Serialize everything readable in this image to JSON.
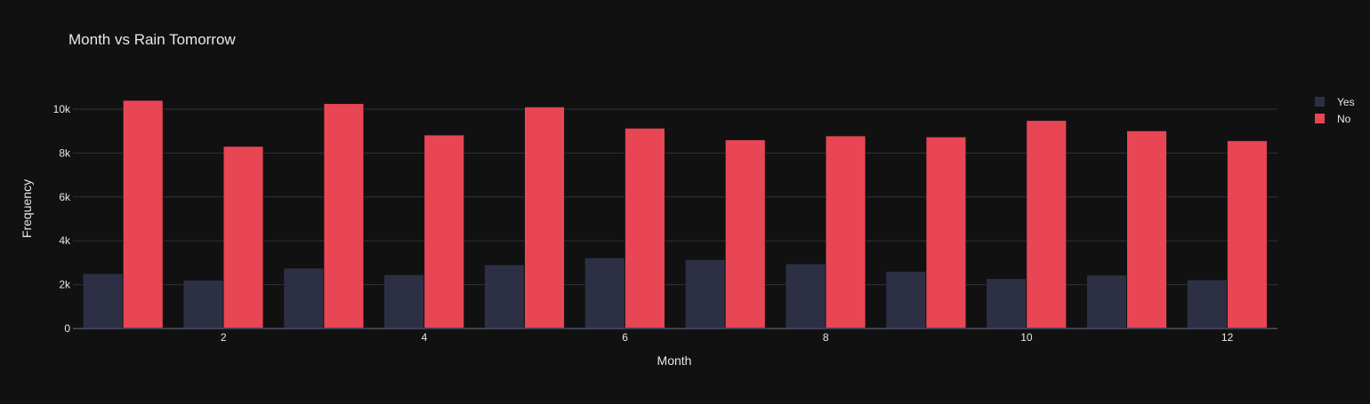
{
  "chart_data": {
    "type": "bar",
    "title": "Month vs Rain Tomorrow",
    "xlabel": "Month",
    "ylabel": "Frequency",
    "x": [
      1,
      2,
      3,
      4,
      5,
      6,
      7,
      8,
      9,
      10,
      11,
      12
    ],
    "x_ticks": [
      2,
      4,
      6,
      8,
      10,
      12
    ],
    "y_ticks": [
      0,
      2000,
      4000,
      6000,
      8000,
      10000
    ],
    "y_tick_labels": [
      "0",
      "2k",
      "4k",
      "6k",
      "8k",
      "10k"
    ],
    "ylim": [
      0,
      11000
    ],
    "xlim": [
      0.5,
      12.5
    ],
    "grid": true,
    "legend_position": "top-right",
    "series": [
      {
        "name": "Yes",
        "color": "#2d2f45",
        "values": [
          2500,
          2200,
          2750,
          2450,
          2900,
          3220,
          3140,
          2950,
          2600,
          2270,
          2430,
          2220
        ]
      },
      {
        "name": "No",
        "color": "#e84655",
        "values": [
          10400,
          8300,
          10250,
          8820,
          10100,
          9130,
          8600,
          8780,
          8730,
          9480,
          9010,
          8560
        ]
      }
    ]
  },
  "colors": {
    "background": "#111111",
    "grid": "#2f3340",
    "axis_line": "#3d4150",
    "text": "#e8e8e8"
  }
}
